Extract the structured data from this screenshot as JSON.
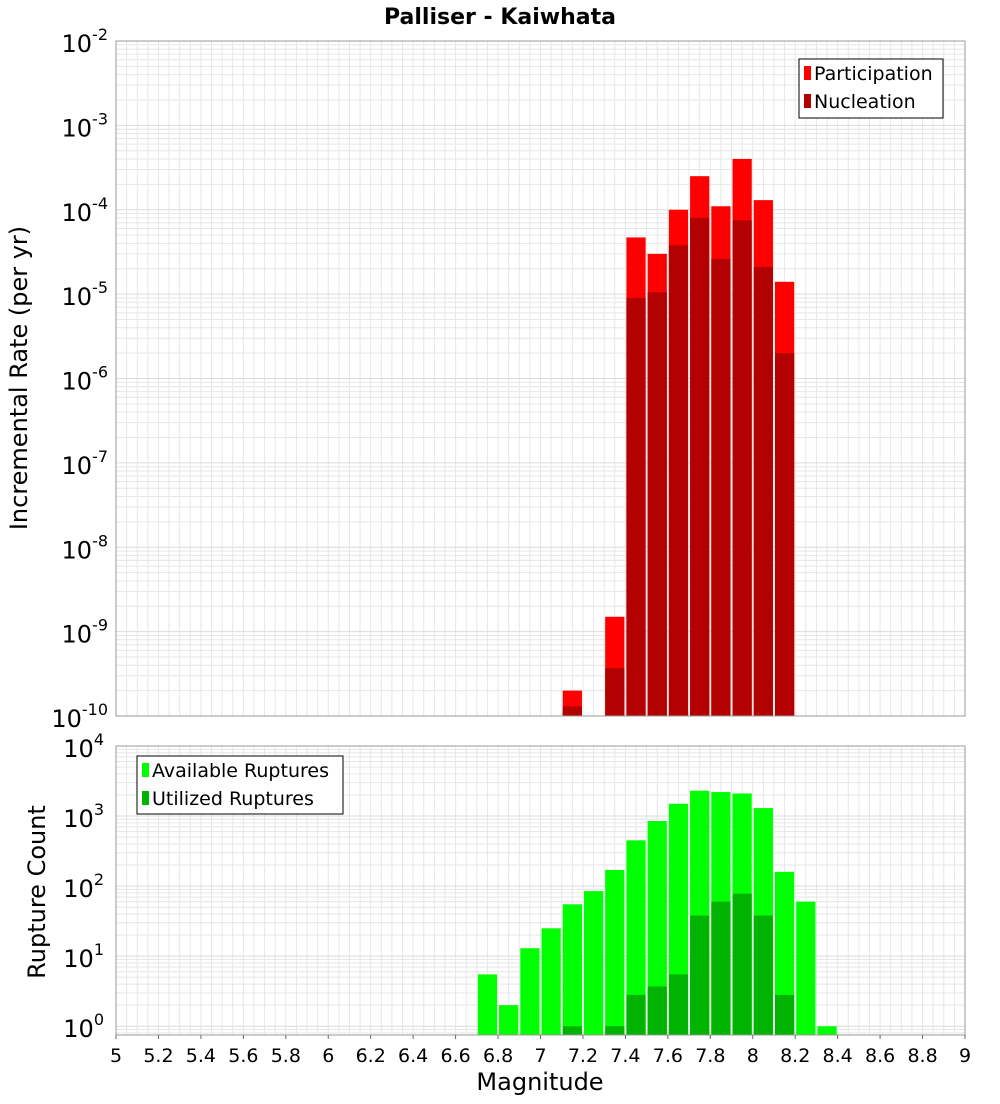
{
  "chart_data": [
    {
      "type": "bar",
      "title": "Palliser - Kaiwhata",
      "xlabel": "",
      "ylabel": "Incremental Rate (per yr)",
      "yscale": "log",
      "xlim": [
        5,
        9
      ],
      "ylim": [
        1e-10,
        0.01
      ],
      "y_ticks": [
        {
          "base": "10",
          "exp": "-10"
        },
        {
          "base": "10",
          "exp": "-9"
        },
        {
          "base": "10",
          "exp": "-8"
        },
        {
          "base": "10",
          "exp": "-7"
        },
        {
          "base": "10",
          "exp": "-6"
        },
        {
          "base": "10",
          "exp": "-5"
        },
        {
          "base": "10",
          "exp": "-4"
        },
        {
          "base": "10",
          "exp": "-3"
        },
        {
          "base": "10",
          "exp": "-2"
        }
      ],
      "grid": true,
      "legend_position": "top-right",
      "x": [
        7.15,
        7.35,
        7.45,
        7.55,
        7.65,
        7.75,
        7.85,
        7.95,
        8.05,
        8.15
      ],
      "series": [
        {
          "name": "Participation",
          "color": "#ff0000",
          "values": [
            2e-10,
            1.5e-09,
            4.7e-05,
            3e-05,
            0.0001,
            0.00025,
            0.00011,
            0.0004,
            0.00013,
            1.4e-05
          ]
        },
        {
          "name": "Nucleation",
          "color": "#b30000",
          "values": [
            1.3e-10,
            3.7e-10,
            9e-06,
            1.05e-05,
            3.8e-05,
            8e-05,
            2.6e-05,
            7.5e-05,
            2.1e-05,
            2e-06
          ]
        }
      ]
    },
    {
      "type": "bar",
      "title": "",
      "xlabel": "Magnitude",
      "ylabel": "Rupture Count",
      "yscale": "log",
      "xlim": [
        5,
        9
      ],
      "ylim": [
        0.75,
        10000
      ],
      "y_ticks": [
        {
          "base": "10",
          "exp": "0"
        },
        {
          "base": "10",
          "exp": "1"
        },
        {
          "base": "10",
          "exp": "2"
        },
        {
          "base": "10",
          "exp": "3"
        },
        {
          "base": "10",
          "exp": "4"
        }
      ],
      "x_ticks": [
        "5",
        "5.2",
        "5.4",
        "5.6",
        "5.8",
        "6",
        "6.2",
        "6.4",
        "6.6",
        "6.8",
        "7",
        "7.2",
        "7.4",
        "7.6",
        "7.8",
        "8",
        "8.2",
        "8.4",
        "8.6",
        "8.8",
        "9"
      ],
      "grid": true,
      "legend_position": "top-left",
      "x": [
        6.75,
        6.85,
        6.95,
        7.05,
        7.15,
        7.25,
        7.35,
        7.45,
        7.55,
        7.65,
        7.75,
        7.85,
        7.95,
        8.05,
        8.15,
        8.25,
        8.35
      ],
      "series": [
        {
          "name": "Available Ruptures",
          "color": "#00ff00",
          "values": [
            5.5,
            2,
            13,
            25,
            55,
            85,
            170,
            450,
            850,
            1500,
            2300,
            2200,
            2100,
            1300,
            160,
            60,
            1
          ]
        },
        {
          "name": "Utilized Ruptures",
          "color": "#00b300",
          "values": [
            0,
            0,
            0,
            0,
            1,
            0,
            1,
            2.8,
            3.7,
            5.5,
            38,
            60,
            78,
            38,
            2.8,
            0,
            0
          ]
        }
      ]
    }
  ]
}
